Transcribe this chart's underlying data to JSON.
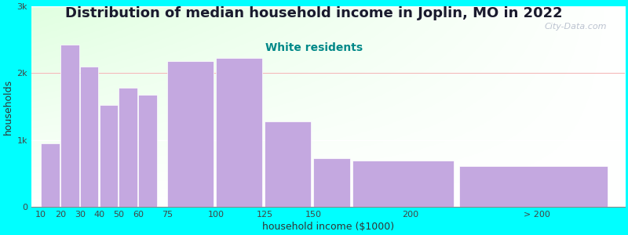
{
  "title": "Distribution of median household income in Joplin, MO in 2022",
  "subtitle": "White residents",
  "subtitle_color": "#008888",
  "xlabel": "household income ($1000)",
  "ylabel": "households",
  "background_color": "#00ffff",
  "bar_color": "#c4a8e0",
  "bar_edge_color": "#ffffff",
  "values": [
    950,
    2430,
    2100,
    1520,
    1780,
    1680,
    2180,
    2230,
    1280,
    730,
    690,
    610
  ],
  "bar_positions": [
    10,
    20,
    30,
    40,
    50,
    60,
    75,
    100,
    125,
    150,
    170,
    225
  ],
  "bar_widths": [
    10,
    10,
    10,
    10,
    10,
    10,
    25,
    25,
    25,
    20,
    55,
    80
  ],
  "ylim": [
    0,
    3000
  ],
  "yticks": [
    0,
    1000,
    2000,
    3000
  ],
  "ytick_labels": [
    "0",
    "1k",
    "2k",
    "3k"
  ],
  "xtick_positions": [
    10,
    20,
    30,
    40,
    50,
    60,
    75,
    100,
    125,
    150,
    200,
    265
  ],
  "xtick_labels": [
    "10",
    "20",
    "30",
    "40",
    "50",
    "60",
    "75",
    "100",
    "125",
    "150",
    "200",
    "> 200"
  ],
  "watermark": "City-Data.com",
  "title_fontsize": 13,
  "subtitle_fontsize": 10,
  "axis_label_fontsize": 9,
  "tick_fontsize": 8
}
